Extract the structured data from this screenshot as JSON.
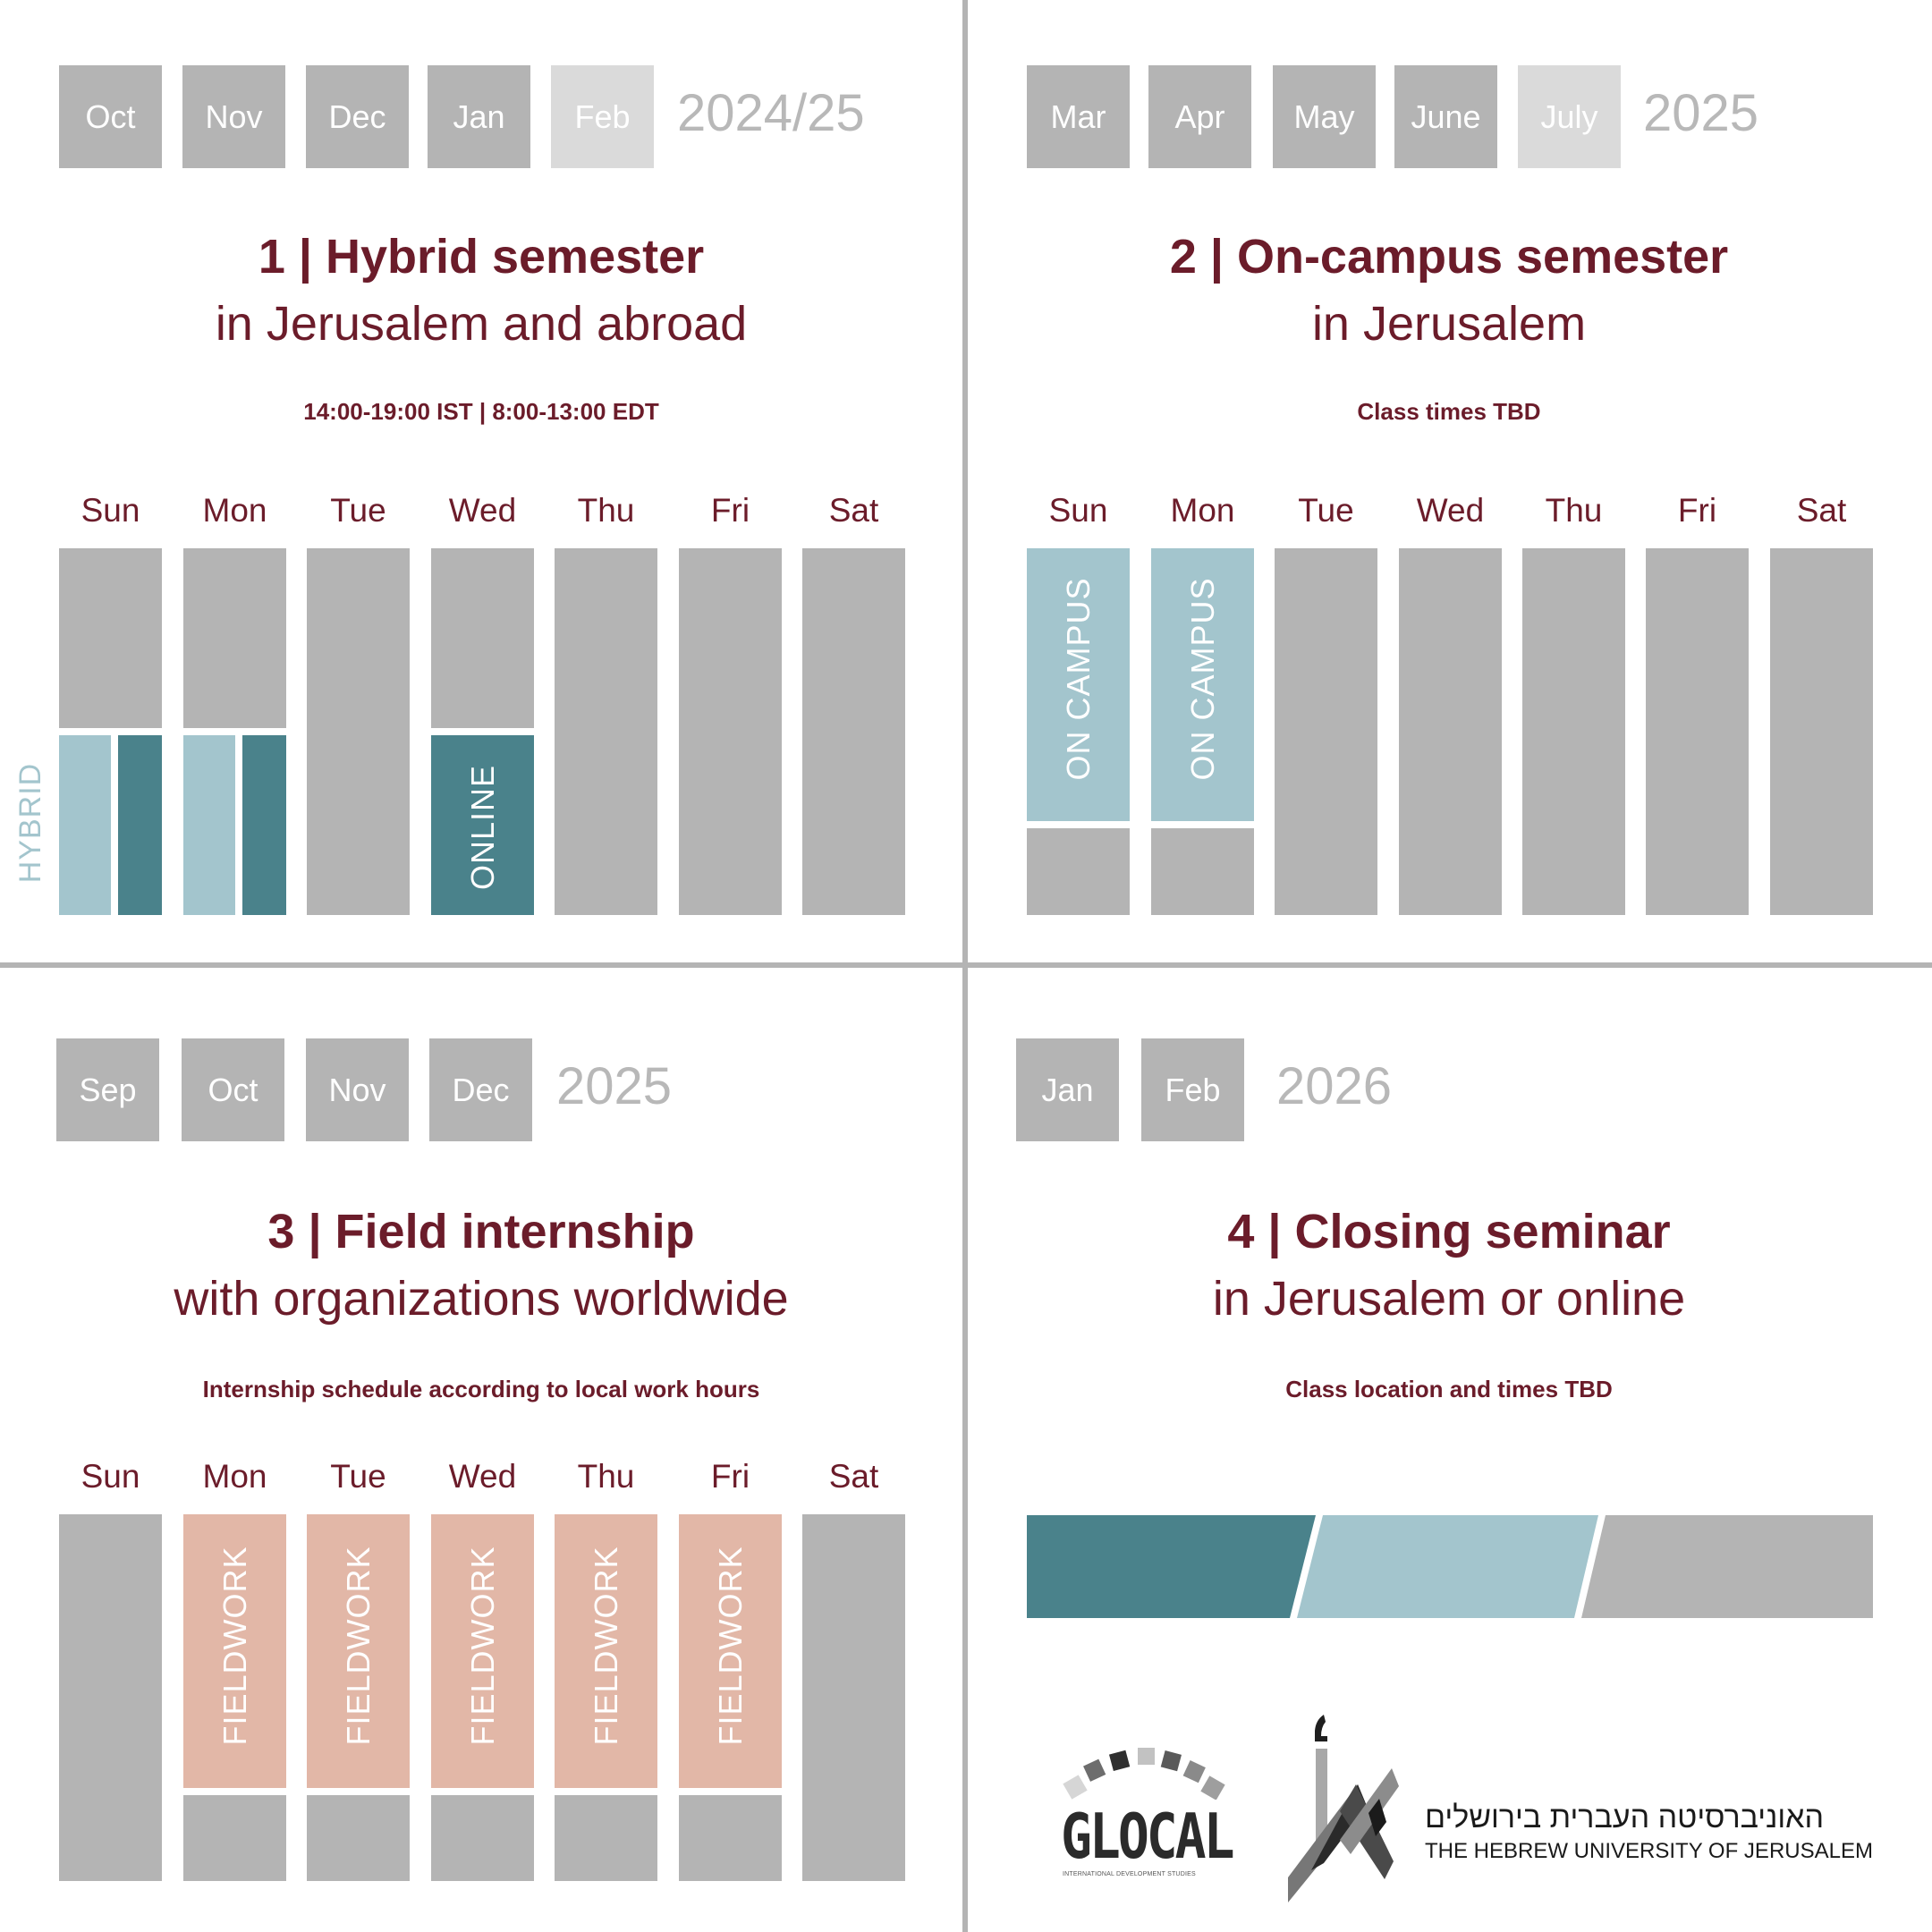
{
  "colors": {
    "title": "#6b1c2a",
    "gray_block": "#b4b4b4",
    "light_gray_block": "#dadada",
    "teal": "#4a828b",
    "light_blue": "#a3c5cd",
    "salmon": "#e2b7a7",
    "gray": "#b4b4b4",
    "year_text": "#b8b8b8",
    "divider": "#b4b4b4"
  },
  "sections": [
    {
      "months": [
        {
          "label": "Oct",
          "dim": false
        },
        {
          "label": "Nov",
          "dim": false
        },
        {
          "label": "Dec",
          "dim": false
        },
        {
          "label": "Jan",
          "dim": false
        },
        {
          "label": "Feb",
          "dim": true
        }
      ],
      "year": "2024/25",
      "title": "1 | Hybrid semester",
      "subtitle": "in Jerusalem and abroad",
      "note": "14:00-19:00 IST | 8:00-13:00 EDT",
      "days": [
        "Sun",
        "Mon",
        "Tue",
        "Wed",
        "Thu",
        "Fri",
        "Sat"
      ],
      "side_label": "HYBRID",
      "blocks": [
        {
          "day": "Sun",
          "type": "hybrid"
        },
        {
          "day": "Mon",
          "type": "hybrid"
        },
        {
          "day": "Tue",
          "type": "free"
        },
        {
          "day": "Wed",
          "type": "online",
          "label": "ONLINE"
        },
        {
          "day": "Thu",
          "type": "free"
        },
        {
          "day": "Fri",
          "type": "free"
        },
        {
          "day": "Sat",
          "type": "free"
        }
      ]
    },
    {
      "months": [
        {
          "label": "Mar",
          "dim": false
        },
        {
          "label": "Apr",
          "dim": false
        },
        {
          "label": "May",
          "dim": false
        },
        {
          "label": "June",
          "dim": false
        },
        {
          "label": "July",
          "dim": true
        }
      ],
      "year": "2025",
      "title": "2 | On-campus semester",
      "subtitle": "in Jerusalem",
      "note": "Class times TBD",
      "days": [
        "Sun",
        "Mon",
        "Tue",
        "Wed",
        "Thu",
        "Fri",
        "Sat"
      ],
      "blocks": [
        {
          "day": "Sun",
          "type": "campus",
          "label": "ON CAMPUS"
        },
        {
          "day": "Mon",
          "type": "campus",
          "label": "ON CAMPUS"
        },
        {
          "day": "Tue",
          "type": "free"
        },
        {
          "day": "Wed",
          "type": "free"
        },
        {
          "day": "Thu",
          "type": "free"
        },
        {
          "day": "Fri",
          "type": "free"
        },
        {
          "day": "Sat",
          "type": "free"
        }
      ]
    },
    {
      "months": [
        {
          "label": "Sep",
          "dim": false
        },
        {
          "label": "Oct",
          "dim": false
        },
        {
          "label": "Nov",
          "dim": false
        },
        {
          "label": "Dec",
          "dim": false
        }
      ],
      "year": "2025",
      "title": "3 | Field internship",
      "subtitle": "with organizations worldwide",
      "note": "Internship schedule according to local work hours",
      "days": [
        "Sun",
        "Mon",
        "Tue",
        "Wed",
        "Thu",
        "Fri",
        "Sat"
      ],
      "blocks": [
        {
          "day": "Sun",
          "type": "free"
        },
        {
          "day": "Mon",
          "type": "fieldwork",
          "label": "FIELDWORK"
        },
        {
          "day": "Tue",
          "type": "fieldwork",
          "label": "FIELDWORK"
        },
        {
          "day": "Wed",
          "type": "fieldwork",
          "label": "FIELDWORK"
        },
        {
          "day": "Thu",
          "type": "fieldwork",
          "label": "FIELDWORK"
        },
        {
          "day": "Fri",
          "type": "fieldwork",
          "label": "FIELDWORK"
        },
        {
          "day": "Sat",
          "type": "free"
        }
      ]
    },
    {
      "months": [
        {
          "label": "Jan",
          "dim": false
        },
        {
          "label": "Feb",
          "dim": false
        }
      ],
      "year": "2026",
      "title": "4 | Closing seminar",
      "subtitle": "in Jerusalem or online",
      "note": "Class location and times TBD",
      "mode_bar": [
        "teal",
        "light_blue",
        "gray"
      ]
    }
  ],
  "logos": {
    "glocal": {
      "name": "GLOCAL",
      "tagline": "INTERNATIONAL DEVELOPMENT STUDIES"
    },
    "hebrew_university": {
      "hebrew": "האוניברסיטה העברית בירושלים",
      "english": "THE HEBREW UNIVERSITY OF JERUSALEM"
    }
  }
}
